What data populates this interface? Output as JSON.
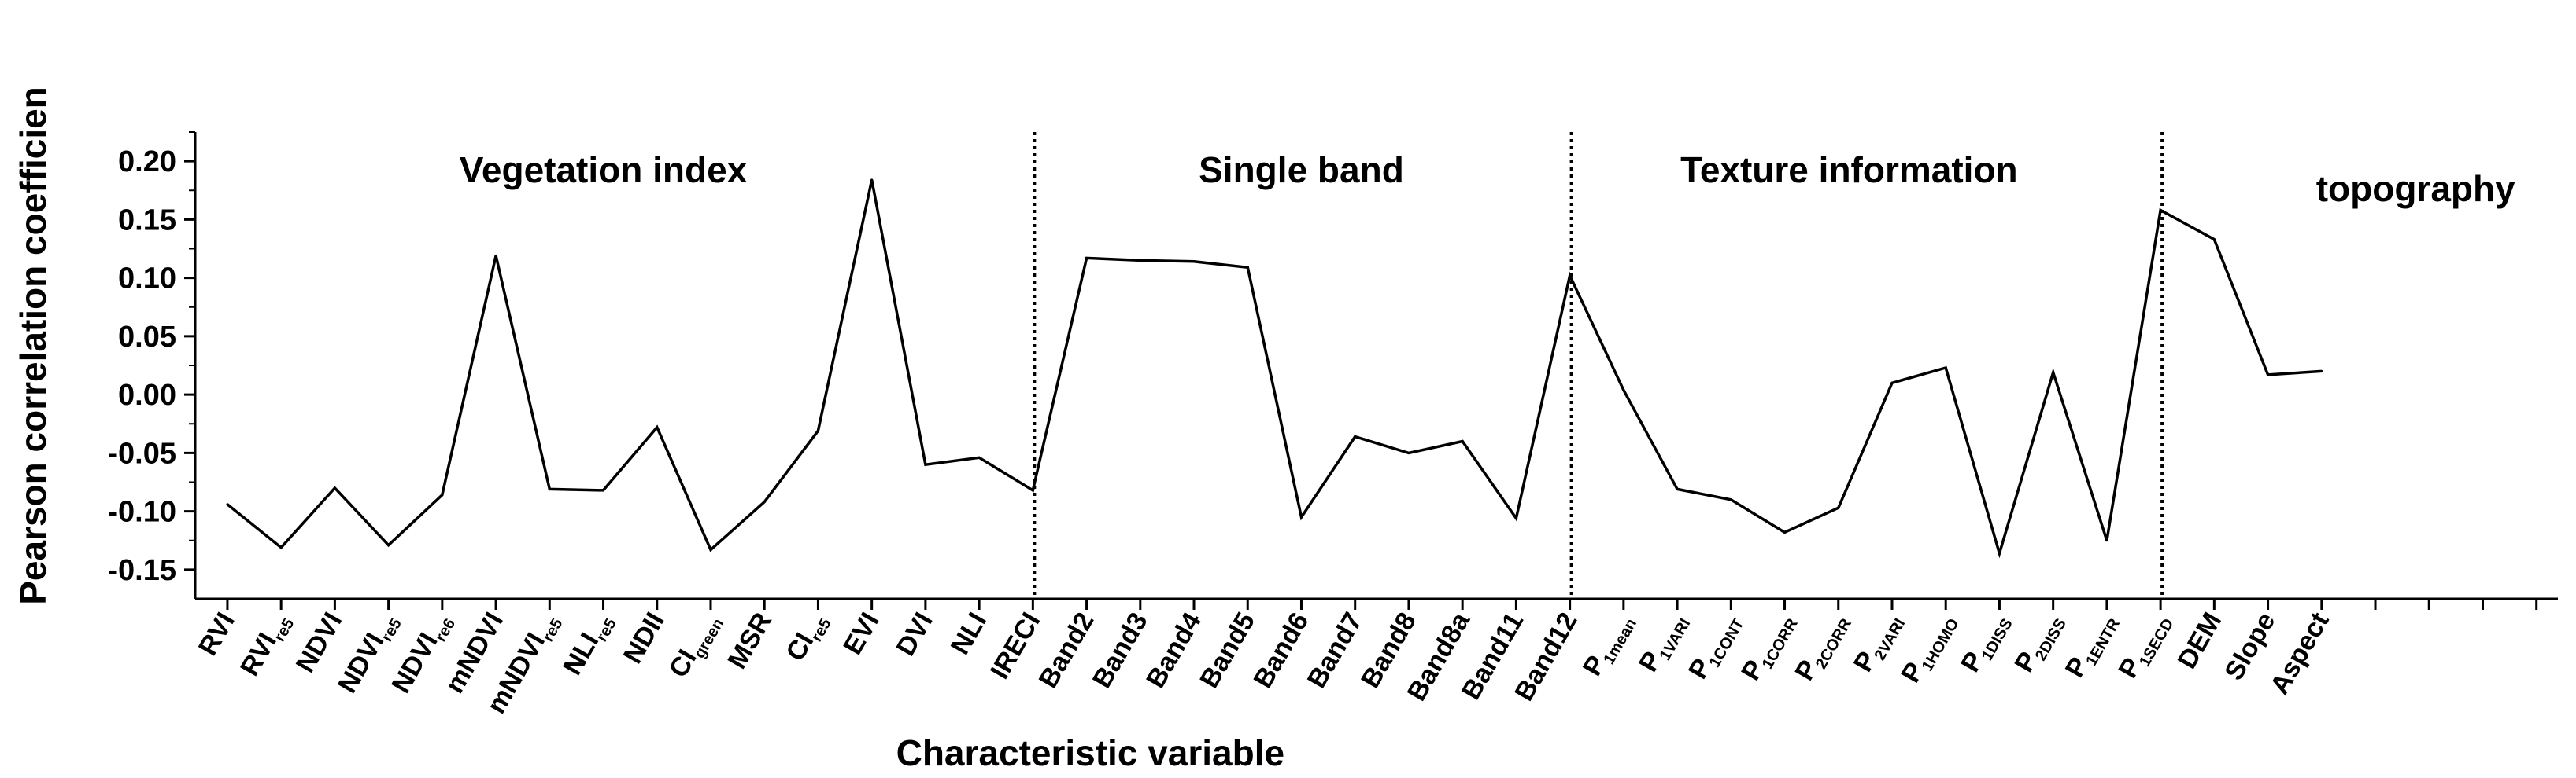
{
  "chart_data": {
    "type": "line",
    "xlabel": "Characteristic variable",
    "ylabel": "Pearson correlation coefficien",
    "ylim": [
      -0.175,
      0.225
    ],
    "yticks": [
      "-0.15",
      "-0.10",
      "-0.05",
      "0.00",
      "0.05",
      "0.10",
      "0.15",
      "0.20"
    ],
    "ytick_values": [
      -0.15,
      -0.1,
      -0.05,
      0.0,
      0.05,
      0.1,
      0.15,
      0.2
    ],
    "grid": false,
    "categories": [
      {
        "base": "RVI",
        "sub": ""
      },
      {
        "base": "RVI",
        "sub": "re5"
      },
      {
        "base": "NDVI",
        "sub": ""
      },
      {
        "base": "NDVI",
        "sub": "re5"
      },
      {
        "base": "NDVI",
        "sub": "re6"
      },
      {
        "base": "mNDVI",
        "sub": ""
      },
      {
        "base": "mNDVI",
        "sub": "re5"
      },
      {
        "base": "NLI",
        "sub": "re5"
      },
      {
        "base": "NDII",
        "sub": ""
      },
      {
        "base": "CI",
        "sub": "green"
      },
      {
        "base": "MSR",
        "sub": ""
      },
      {
        "base": "CI",
        "sub": "re5"
      },
      {
        "base": "EVI",
        "sub": ""
      },
      {
        "base": "DVI",
        "sub": ""
      },
      {
        "base": "NLI",
        "sub": ""
      },
      {
        "base": "IRECI",
        "sub": ""
      },
      {
        "base": "Band2",
        "sub": ""
      },
      {
        "base": "Band3",
        "sub": ""
      },
      {
        "base": "Band4",
        "sub": ""
      },
      {
        "base": "Band5",
        "sub": ""
      },
      {
        "base": "Band6",
        "sub": ""
      },
      {
        "base": "Band7",
        "sub": ""
      },
      {
        "base": "Band8",
        "sub": ""
      },
      {
        "base": "Band8a",
        "sub": ""
      },
      {
        "base": "Band11",
        "sub": ""
      },
      {
        "base": "Band12",
        "sub": ""
      },
      {
        "base": "P",
        "sub": "1mean"
      },
      {
        "base": "P",
        "sub": "1VARI"
      },
      {
        "base": "P",
        "sub": "1CONT"
      },
      {
        "base": "P",
        "sub": "1CORR"
      },
      {
        "base": "P",
        "sub": "2CORR"
      },
      {
        "base": "P",
        "sub": "2VARI"
      },
      {
        "base": "P",
        "sub": "1HOMO"
      },
      {
        "base": "P",
        "sub": "1DISS"
      },
      {
        "base": "P",
        "sub": "2DISS"
      },
      {
        "base": "P",
        "sub": "1ENTR"
      },
      {
        "base": "P",
        "sub": "1SECD"
      },
      {
        "base": "DEM",
        "sub": ""
      },
      {
        "base": "Slope",
        "sub": ""
      },
      {
        "base": "Aspect",
        "sub": ""
      }
    ],
    "series": [
      {
        "values": [
          -0.094,
          -0.131,
          -0.08,
          -0.129,
          -0.086,
          0.119,
          -0.081,
          -0.082,
          -0.028,
          -0.133,
          -0.092,
          -0.031,
          0.184,
          -0.06,
          -0.054,
          -0.082,
          0.117,
          0.115,
          0.114,
          0.109,
          -0.105,
          -0.036,
          -0.05,
          -0.04,
          -0.106,
          0.102,
          0.004,
          -0.081,
          -0.09,
          -0.118,
          -0.097,
          0.01,
          0.023,
          -0.136,
          0.019,
          -0.125,
          0.158,
          0.133,
          0.017,
          0.02
        ]
      }
    ],
    "x_axis_total_slots": 44,
    "dividers_after_index": [
      15,
      25,
      36
    ],
    "section_labels": [
      "Vegetation index",
      "Single band",
      "Texture information",
      "topography"
    ],
    "line_color": "#000000"
  }
}
